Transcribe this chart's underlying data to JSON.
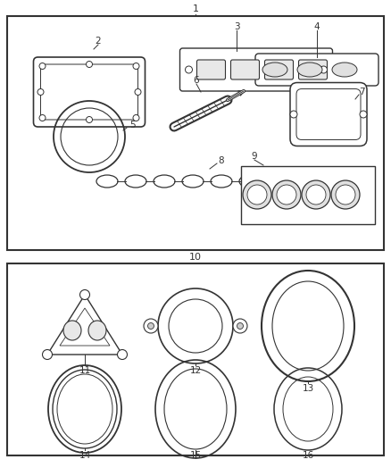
{
  "bg_color": "#ffffff",
  "line_color": "#333333",
  "text_color": "#333333",
  "fig_width": 4.38,
  "fig_height": 5.33,
  "dpi": 100
}
